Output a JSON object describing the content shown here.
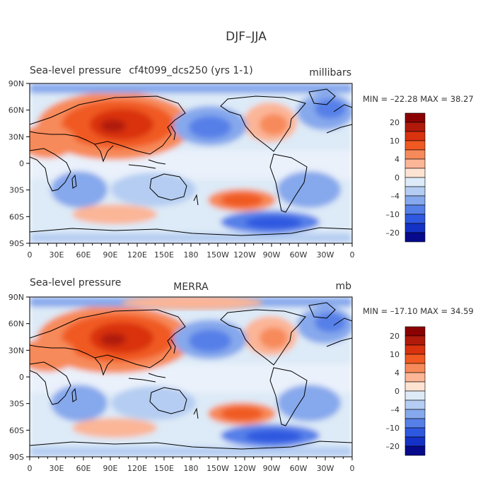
{
  "figure": {
    "title": "DJF–JJA"
  },
  "panels": [
    {
      "id": "model",
      "left_title": "Sea-level pressure",
      "center_title": "cf4t099_dcs250 (yrs 1-1)",
      "units": "millibars",
      "stats": "MIN = –22.28 MAX =  38.27"
    },
    {
      "id": "merra",
      "left_title": "Sea-level pressure",
      "center_title": "MERRA",
      "units": "mb",
      "stats": "MIN = –17.10 MAX =  34.59"
    }
  ],
  "axes": {
    "lon_ticks": [
      "0",
      "30E",
      "60E",
      "90E",
      "120E",
      "150E",
      "180",
      "150W",
      "120W",
      "90W",
      "60W",
      "30W",
      "0"
    ],
    "lat_ticks": [
      "90N",
      "60N",
      "30N",
      "0",
      "30S",
      "60S",
      "90S"
    ]
  },
  "colorbar": {
    "levels": [
      {
        "color": "#8b0000"
      },
      {
        "color": "#b01a0a"
      },
      {
        "color": "#d9320f"
      },
      {
        "color": "#f05a22"
      },
      {
        "color": "#f78a5a"
      },
      {
        "color": "#fbb597"
      },
      {
        "color": "#fde3d2"
      },
      {
        "color": "#ddeaf7"
      },
      {
        "color": "#b5cdf2"
      },
      {
        "color": "#86a8ec"
      },
      {
        "color": "#5680e8"
      },
      {
        "color": "#2e58e0"
      },
      {
        "color": "#1532c6"
      },
      {
        "color": "#060a8b"
      }
    ],
    "labels": [
      "20",
      "10",
      "4",
      "0",
      "–4",
      "–10",
      "–20"
    ]
  }
}
